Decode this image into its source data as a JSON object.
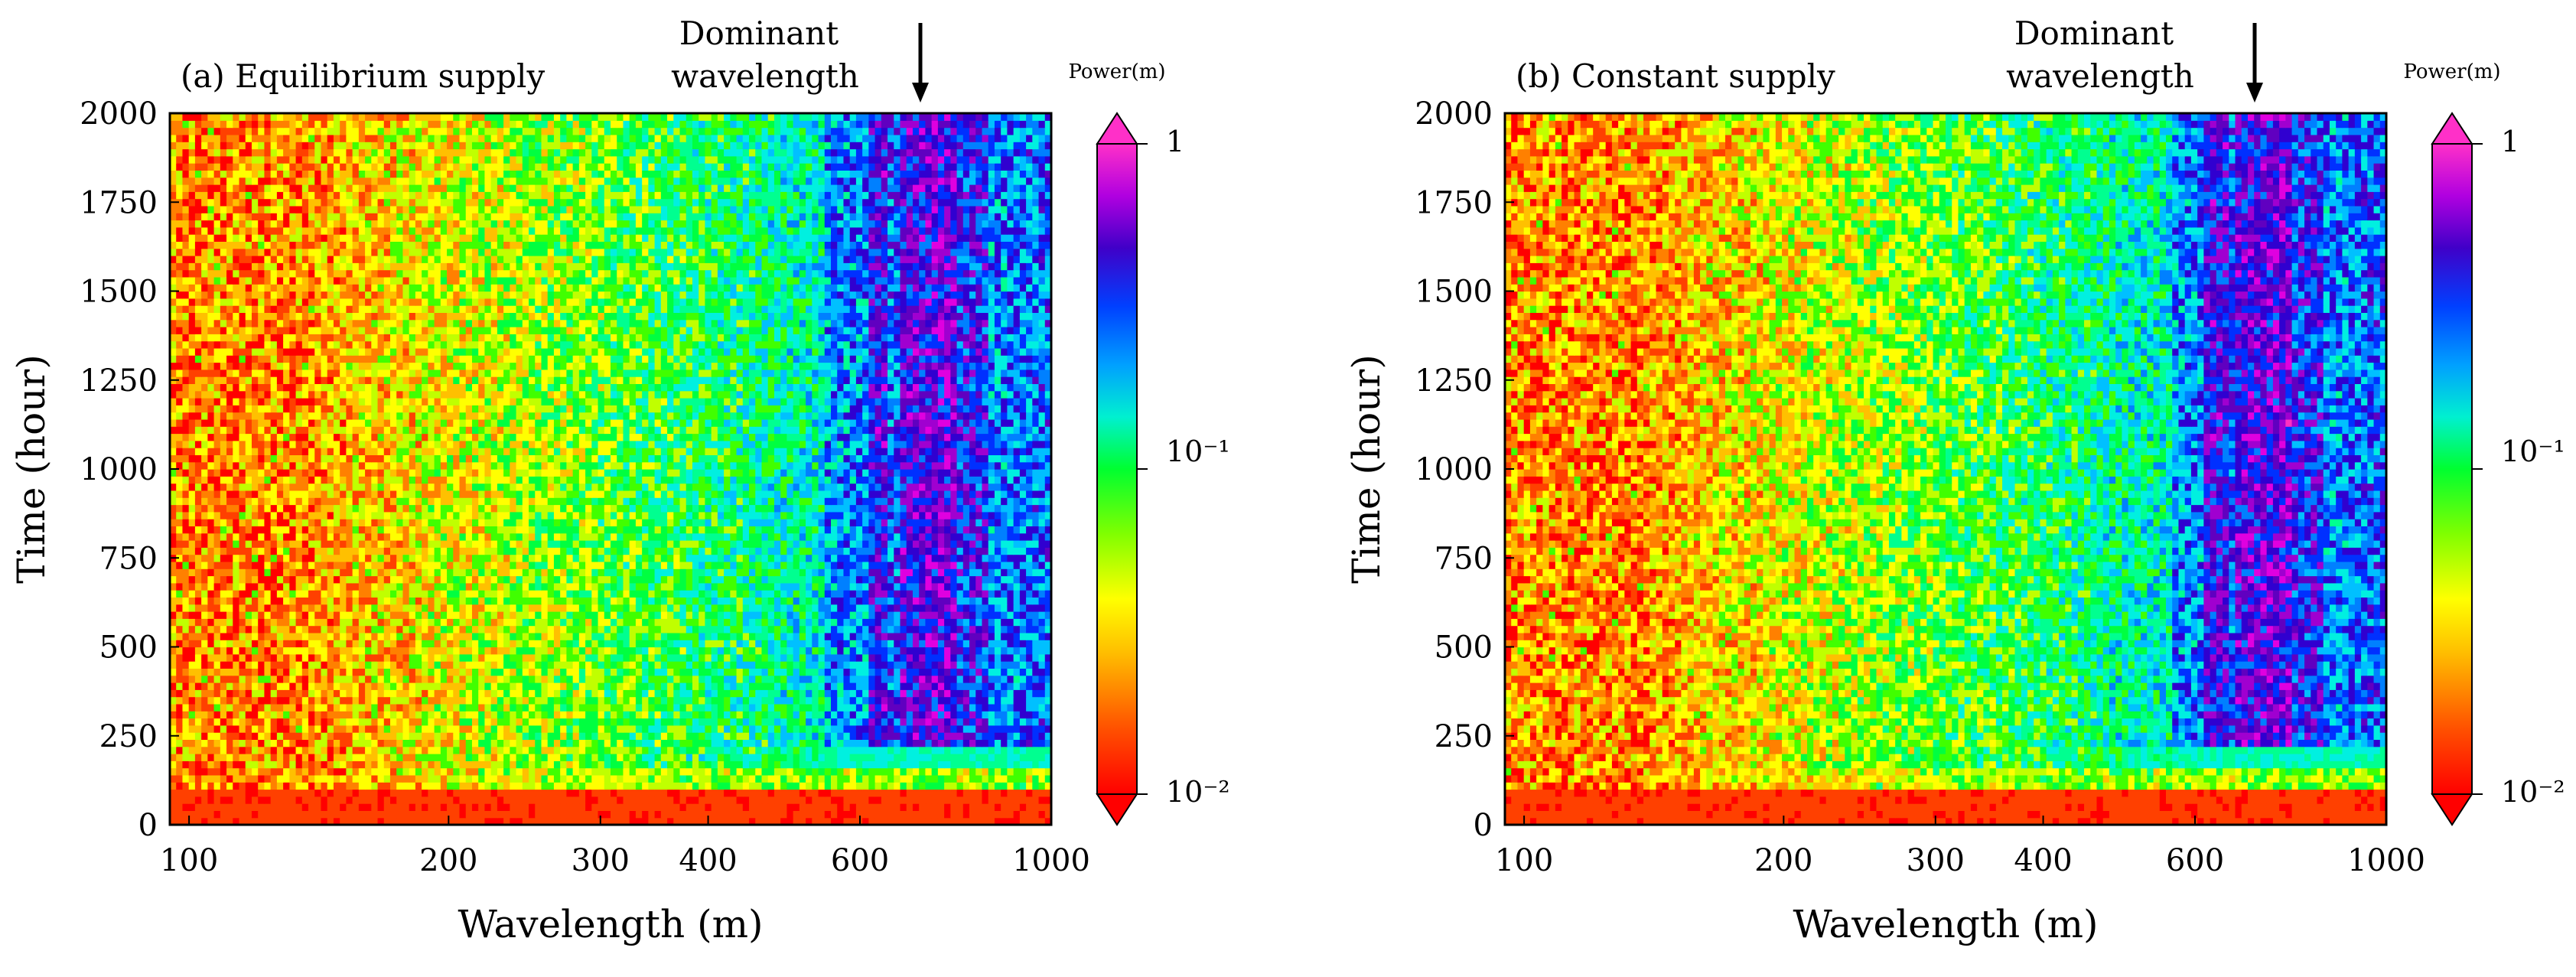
{
  "chart_data": [
    {
      "type": "heatmap",
      "title": "(a) Equilibrium supply",
      "xlabel": "Wavelength (m)",
      "ylabel": "Time (hour)",
      "xscale": "log",
      "xlim": [
        95,
        1000
      ],
      "ylim": [
        0,
        2000
      ],
      "xticks": [
        100,
        200,
        300,
        400,
        600,
        1000
      ],
      "xtick_labels": [
        "100",
        "200",
        "300",
        "400",
        "600",
        "1000"
      ],
      "yticks": [
        0,
        250,
        500,
        750,
        1000,
        1250,
        1500,
        1750,
        2000
      ],
      "ytick_labels": [
        "0",
        "250",
        "500",
        "750",
        "1000",
        "1250",
        "1500",
        "1750",
        "2000"
      ],
      "annotation": {
        "text_line1": "Dominant",
        "text_line2": "wavelength",
        "x": 720
      },
      "dominant_band": {
        "center": 720,
        "ridge_start_hour": 200
      },
      "secondary_band": {
        "low": 550,
        "high": 650
      },
      "colorbar": {
        "title": "Power(m)",
        "scale": "log",
        "min": 0.01,
        "max": 1,
        "tick_labels": [
          "1",
          "10⁻¹",
          "10⁻²"
        ],
        "tick_values": [
          1,
          0.1,
          0.01
        ]
      }
    },
    {
      "type": "heatmap",
      "title": "(b) Constant supply",
      "xlabel": "Wavelength (m)",
      "ylabel": "Time (hour)",
      "xscale": "log",
      "xlim": [
        95,
        1000
      ],
      "ylim": [
        0,
        2000
      ],
      "xticks": [
        100,
        200,
        300,
        400,
        600,
        1000
      ],
      "xtick_labels": [
        "100",
        "200",
        "300",
        "400",
        "600",
        "1000"
      ],
      "yticks": [
        0,
        250,
        500,
        750,
        1000,
        1250,
        1500,
        1750,
        2000
      ],
      "ytick_labels": [
        "0",
        "250",
        "500",
        "750",
        "1000",
        "1250",
        "1500",
        "1750",
        "2000"
      ],
      "annotation": {
        "text_line1": "Dominant",
        "text_line2": "wavelength",
        "x": 720
      },
      "dominant_band": {
        "center": 720,
        "ridge_start_hour": 200
      },
      "secondary_band": {
        "low": 560,
        "high": 660
      },
      "colorbar": {
        "title": "Power(m)",
        "scale": "log",
        "min": 0.01,
        "max": 1,
        "tick_labels": [
          "1",
          "10⁻¹",
          "10⁻²"
        ],
        "tick_values": [
          1,
          0.1,
          0.01
        ]
      }
    }
  ],
  "colors": {
    "colormap": [
      "#ff0000",
      "#ff4000",
      "#ff8000",
      "#ffc000",
      "#ffff00",
      "#c0ff00",
      "#40ff00",
      "#00ff40",
      "#00ff90",
      "#00f0e0",
      "#00c0ff",
      "#0080ff",
      "#0030ff",
      "#3000d0",
      "#6000c0",
      "#a000d0",
      "#e000e0",
      "#ff30c0"
    ],
    "axis": "#000000"
  }
}
